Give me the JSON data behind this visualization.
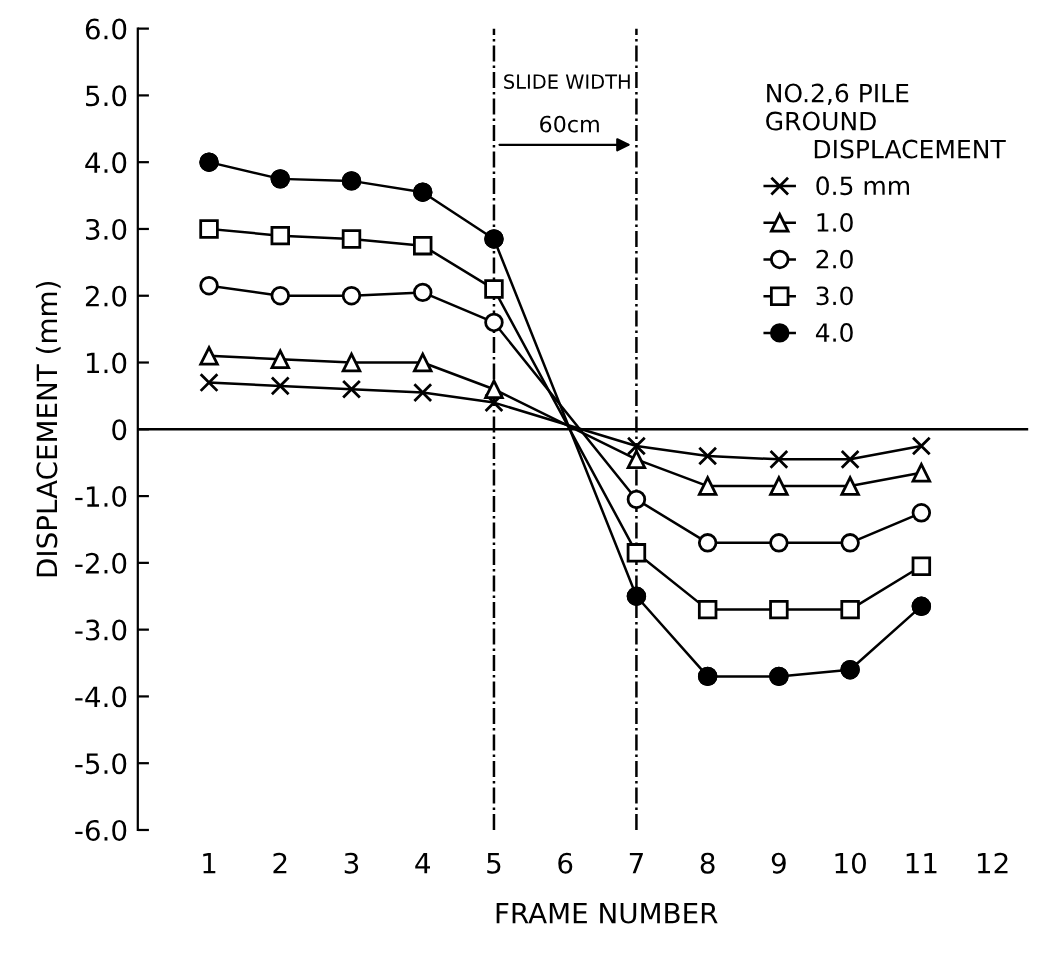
{
  "chart_data": {
    "type": "line",
    "xlabel": "FRAME NUMBER",
    "ylabel": "DISPLACEMENT (mm)",
    "legend_title": "NO.2,6 PILE\nGROUND\n      DISPLACEMENT",
    "x": [
      1,
      2,
      3,
      4,
      5,
      7,
      8,
      9,
      10,
      11
    ],
    "series": [
      {
        "name": "0.5 mm",
        "color": "#000000",
        "marker": "cross",
        "values": [
          0.7,
          0.65,
          0.6,
          0.55,
          0.4,
          -0.25,
          -0.4,
          -0.45,
          -0.45,
          -0.25
        ]
      },
      {
        "name": "1.0",
        "color": "#000000",
        "marker": "triangle",
        "values": [
          1.1,
          1.05,
          1.0,
          1.0,
          0.6,
          -0.45,
          -0.85,
          -0.85,
          -0.85,
          -0.65
        ]
      },
      {
        "name": "2.0",
        "color": "#000000",
        "marker": "circle",
        "values": [
          2.15,
          2.0,
          2.0,
          2.05,
          1.6,
          -1.05,
          -1.7,
          -1.7,
          -1.7,
          -1.25
        ]
      },
      {
        "name": "3.0",
        "color": "#000000",
        "marker": "square",
        "values": [
          3.0,
          2.9,
          2.85,
          2.75,
          2.1,
          -1.85,
          -2.7,
          -2.7,
          -2.7,
          -2.05
        ]
      },
      {
        "name": "4.0",
        "color": "#000000",
        "marker": "circle",
        "colors": [
          "#000000",
          "#000000",
          "#000000",
          "#000000",
          "#000000",
          "#000000",
          "#000000",
          "#000000",
          "#000000",
          "#000000"
        ],
        "values": [
          4.0,
          3.75,
          3.72,
          3.55,
          2.85,
          -2.5,
          -3.7,
          -3.7,
          -3.6,
          -2.65
        ]
      }
    ],
    "xlim": [
      0,
      12.5
    ],
    "xticks": [
      1,
      2,
      3,
      4,
      5,
      6,
      7,
      8,
      9,
      10,
      11,
      12
    ],
    "ylim": [
      -6,
      6
    ],
    "yticks": [
      {
        "value": -6,
        "label": "-6.0"
      },
      {
        "value": -5,
        "label": "-5.0"
      },
      {
        "value": -4,
        "label": "-4.0"
      },
      {
        "value": -3,
        "label": "-3.0"
      },
      {
        "value": -2,
        "label": "-2.0"
      },
      {
        "value": -1,
        "label": "-1.0"
      },
      0,
      {
        "value": 1,
        "label": "1.0"
      },
      {
        "value": 2,
        "label": "2.0"
      },
      {
        "value": 3,
        "label": "3.0"
      },
      {
        "value": 4,
        "label": "4.0"
      },
      {
        "value": 5,
        "label": "5.0"
      },
      {
        "value": 6,
        "label": "6.0"
      }
    ],
    "ref_lines": [
      {
        "axis": "y",
        "value": 0,
        "color": "#000000",
        "line_style": "solid"
      },
      {
        "axis": "x",
        "value": 5,
        "color": "#000000",
        "line_style": "dashed"
      },
      {
        "axis": "x",
        "value": 7,
        "color": "#000000",
        "line_style": "dashed"
      }
    ],
    "annotations": [
      "SLIDE WIDTH",
      "60cm"
    ],
    "grid": false,
    "legend": "top right",
    "line_style": "solid"
  }
}
